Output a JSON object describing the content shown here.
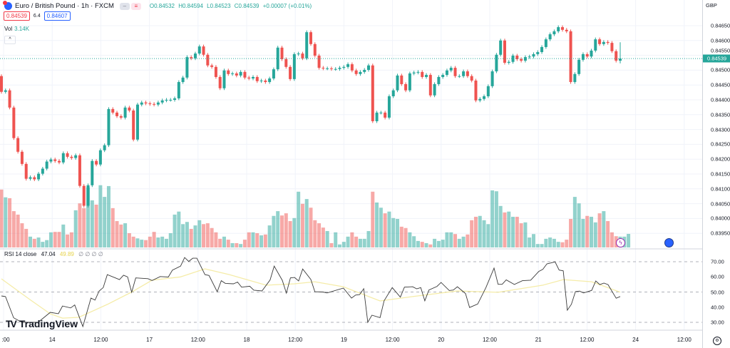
{
  "header": {
    "symbol_title": "Euro / British Pound · 1h · FXCM",
    "ohlc": {
      "open": "O0.84532",
      "high": "H0.84594",
      "low": "L0.84523",
      "close": "C0.84539",
      "change": "+0.00007 (+0.01%)"
    },
    "sell_price": "0.84539",
    "spread": "6.4",
    "buy_price": "0.84607",
    "volume_label": "Vol",
    "volume_value": "3.14K",
    "collapse_icon": "^"
  },
  "rsi_legend": {
    "label": "RSI 14 close",
    "rsi_value": "47.04",
    "ma_value": "49.89",
    "extra": "∅ ∅ ∅ ∅"
  },
  "axis": {
    "currency": "GBP",
    "current_price_label": "0.84539",
    "gear_icon": "⚙"
  },
  "branding": {
    "logo_mark": "TV",
    "logo_text": "TradingView"
  },
  "icons": {
    "bolt": "ϟ"
  },
  "colors": {
    "up": "#26a69a",
    "down": "#ef5350",
    "rsi_line": "#3a3a3a",
    "rsi_ma": "#f5eca8",
    "grid": "#f0f3fa"
  },
  "chart_data": {
    "type": "candlestick",
    "title": "Euro / British Pound · 1h · FXCM",
    "price_axis": {
      "ticks": [
        0.8465,
        0.846,
        0.8455,
        0.845,
        0.8445,
        0.844,
        0.8435,
        0.843,
        0.8425,
        0.842,
        0.8415,
        0.841,
        0.8405,
        0.84,
        0.8395
      ],
      "tick_labels": [
        "0.84650",
        "0.84600",
        "0.84550",
        "0.84500",
        "0.84450",
        "0.84400",
        "0.84350",
        "0.84300",
        "0.84250",
        "0.84200",
        "0.84150",
        "0.84100",
        "0.84050",
        "0.84000",
        "0.83950"
      ],
      "range": [
        0.8391,
        0.8466
      ]
    },
    "time_axis": {
      "tick_labels": [
        ":00",
        "14",
        "12:00",
        "17",
        "12:00",
        "18",
        "12:00",
        "19",
        "12:00",
        "20",
        "12:00",
        "21",
        "12:00",
        "24",
        "12:00"
      ]
    },
    "first_open": 0.8448,
    "closes": [
      0.84427,
      0.84432,
      0.84374,
      0.84271,
      0.84225,
      0.84184,
      0.84134,
      0.84139,
      0.84132,
      0.84151,
      0.84168,
      0.84192,
      0.84199,
      0.84194,
      0.84189,
      0.8422,
      0.84208,
      0.84204,
      0.84213,
      0.8411,
      0.84043,
      0.84112,
      0.84194,
      0.84182,
      0.8423,
      0.84247,
      0.84369,
      0.84357,
      0.84345,
      0.8434,
      0.84374,
      0.84364,
      0.84266,
      0.84384,
      0.84391,
      0.84388,
      0.84386,
      0.84384,
      0.84391,
      0.84398,
      0.844,
      0.844,
      0.84405,
      0.8446,
      0.84475,
      0.84544,
      0.8454,
      0.84556,
      0.8458,
      0.84552,
      0.84516,
      0.84511,
      0.84477,
      0.84439,
      0.84499,
      0.84487,
      0.84489,
      0.84482,
      0.84494,
      0.84475,
      0.84472,
      0.84477,
      0.84463,
      0.84465,
      0.8446,
      0.84472,
      0.84503,
      0.84576,
      0.84537,
      0.84511,
      0.8447,
      0.84554,
      0.84556,
      0.8454,
      0.84628,
      0.84588,
      0.84549,
      0.84508,
      0.84506,
      0.84506,
      0.84504,
      0.84504,
      0.84508,
      0.84511,
      0.8452,
      0.84499,
      0.84487,
      0.84494,
      0.84501,
      0.84516,
      0.84328,
      0.84357,
      0.84357,
      0.8434,
      0.84412,
      0.84432,
      0.84482,
      0.84453,
      0.84432,
      0.84489,
      0.84492,
      0.84494,
      0.84477,
      0.84484,
      0.84415,
      0.84453,
      0.84477,
      0.84484,
      0.84499,
      0.84508,
      0.8448,
      0.8448,
      0.84496,
      0.8448,
      0.84465,
      0.84398,
      0.84403,
      0.84412,
      0.84446,
      0.84496,
      0.84552,
      0.846,
      0.84525,
      0.84528,
      0.84549,
      0.84537,
      0.84532,
      0.84544,
      0.84546,
      0.84554,
      0.84561,
      0.84578,
      0.84604,
      0.84621,
      0.84631,
      0.84645,
      0.84636,
      0.84631,
      0.8446,
      0.84487,
      0.84535,
      0.84554,
      0.84546,
      0.84566,
      0.84604,
      0.84588,
      0.84595,
      0.84592,
      0.84564,
      0.84532,
      0.84539
    ],
    "last_bar": {
      "open": 0.84532,
      "high": 0.84594,
      "low": 0.84523,
      "close": 0.84539
    },
    "current_price": 0.84539,
    "volume_k": [
      13.4,
      11.6,
      11.4,
      8.4,
      7.6,
      5.6,
      4.3,
      2.5,
      2.0,
      2.3,
      1.3,
      1.7,
      3.5,
      3.6,
      3.6,
      5.3,
      3.0,
      3.5,
      8.6,
      10.2,
      9.1,
      13.9,
      10.9,
      9.9,
      14.4,
      11.7,
      14.2,
      9.1,
      6.1,
      5.3,
      5.6,
      3.3,
      2.5,
      2.1,
      1.8,
      1.7,
      2.5,
      3.6,
      2.3,
      2.5,
      2.0,
      3.3,
      7.6,
      8.3,
      5.4,
      5.9,
      4.3,
      5.1,
      6.3,
      5.4,
      5.6,
      4.5,
      3.5,
      2.0,
      2.5,
      1.8,
      1.0,
      1.0,
      0.8,
      1.8,
      3.5,
      3.5,
      3.3,
      2.8,
      3.0,
      5.1,
      7.3,
      8.4,
      7.4,
      7.9,
      6.1,
      6.8,
      12.9,
      10.1,
      11.2,
      9.2,
      6.3,
      5.6,
      4.6,
      3.8,
      1.0,
      3.5,
      0.7,
      1.3,
      2.5,
      3.5,
      2.5,
      2.0,
      2.0,
      3.8,
      12.9,
      10.4,
      9.2,
      7.9,
      8.3,
      6.8,
      6.6,
      4.8,
      4.5,
      3.5,
      2.6,
      1.5,
      1.3,
      1.0,
      0.7,
      2.0,
      1.5,
      1.8,
      3.5,
      3.5,
      3.1,
      2.0,
      2.5,
      3.0,
      6.3,
      7.1,
      7.3,
      6.3,
      5.4,
      13.2,
      13.0,
      9.6,
      8.1,
      8.3,
      7.1,
      7.1,
      5.6,
      5.8,
      2.3,
      3.1,
      0.8,
      0.8,
      2.0,
      2.3,
      2.0,
      1.3,
      1.2,
      1.8,
      6.6,
      11.7,
      10.2,
      6.6,
      7.3,
      7.1,
      5.8,
      7.9,
      8.4,
      6.1,
      3.5,
      2.6,
      2.5,
      2.5,
      3.14
    ],
    "rsi": {
      "period": 14,
      "levels": [
        70,
        50,
        30
      ],
      "axis_ticks": [
        70,
        60,
        50,
        40,
        30
      ],
      "axis_labels": [
        "70.00",
        "60.00",
        "50.00",
        "40.00",
        "30.00"
      ],
      "points": [
        [
          0,
          47.4
        ],
        [
          1,
          47
        ],
        [
          3,
          33
        ],
        [
          5,
          30
        ],
        [
          9,
          30
        ],
        [
          12,
          36.6
        ],
        [
          14,
          35.7
        ],
        [
          15,
          40.8
        ],
        [
          17,
          39.5
        ],
        [
          18,
          41.5
        ],
        [
          20,
          27.2
        ],
        [
          22,
          46
        ],
        [
          23,
          44.7
        ],
        [
          24,
          50.7
        ],
        [
          25,
          52.9
        ],
        [
          26,
          61.5
        ],
        [
          29,
          58.2
        ],
        [
          30,
          61.1
        ],
        [
          31,
          60
        ],
        [
          32,
          49.8
        ],
        [
          33,
          59.3
        ],
        [
          36,
          58.8
        ],
        [
          37,
          57.6
        ],
        [
          39,
          60.2
        ],
        [
          41,
          59.9
        ],
        [
          42,
          64.4
        ],
        [
          44,
          67.1
        ],
        [
          45,
          72.8
        ],
        [
          46,
          70.2
        ],
        [
          47,
          72.3
        ],
        [
          48,
          72.3
        ],
        [
          50,
          61.5
        ],
        [
          51,
          60.9
        ],
        [
          53,
          50.2
        ],
        [
          54,
          57.5
        ],
        [
          55,
          55.7
        ],
        [
          57,
          55.4
        ],
        [
          58,
          56.6
        ],
        [
          59,
          53.2
        ],
        [
          61,
          53.8
        ],
        [
          62,
          51.2
        ],
        [
          64,
          50.7
        ],
        [
          66,
          58
        ],
        [
          67,
          67.1
        ],
        [
          69,
          57.7
        ],
        [
          70,
          49.3
        ],
        [
          71,
          59.3
        ],
        [
          72,
          59.6
        ],
        [
          73,
          57.3
        ],
        [
          74,
          65.2
        ],
        [
          76,
          58.3
        ],
        [
          77,
          50.2
        ],
        [
          79,
          50
        ],
        [
          80,
          49.4
        ],
        [
          84,
          52.6
        ],
        [
          86,
          46
        ],
        [
          87,
          48
        ],
        [
          88,
          48.3
        ],
        [
          89,
          52.2
        ],
        [
          90,
          30
        ],
        [
          91,
          34.7
        ],
        [
          93,
          33.1
        ],
        [
          94,
          44.2
        ],
        [
          96,
          52.9
        ],
        [
          98,
          46.6
        ],
        [
          99,
          53.2
        ],
        [
          101,
          53.5
        ],
        [
          102,
          52.1
        ],
        [
          103,
          52.9
        ],
        [
          104,
          44.2
        ],
        [
          105,
          51.3
        ],
        [
          107,
          53.7
        ],
        [
          108,
          56.3
        ],
        [
          110,
          51
        ],
        [
          111,
          51.3
        ],
        [
          112,
          53.5
        ],
        [
          114,
          49
        ],
        [
          115,
          39.8
        ],
        [
          117,
          42.1
        ],
        [
          119,
          52.9
        ],
        [
          121,
          65.8
        ],
        [
          122,
          55.1
        ],
        [
          123,
          55.1
        ],
        [
          124,
          58
        ],
        [
          126,
          55
        ],
        [
          128,
          57.5
        ],
        [
          130,
          57.8
        ],
        [
          132,
          63.6
        ],
        [
          133,
          65
        ],
        [
          134,
          68.6
        ],
        [
          135,
          69.2
        ],
        [
          136,
          69.9
        ],
        [
          137,
          64.5
        ],
        [
          138,
          64
        ],
        [
          139,
          38
        ],
        [
          140,
          41.9
        ],
        [
          141,
          50.3
        ],
        [
          142,
          50.6
        ],
        [
          143,
          49.4
        ],
        [
          145,
          51.1
        ],
        [
          146,
          57.3
        ],
        [
          147,
          54.9
        ],
        [
          148,
          55.9
        ],
        [
          149,
          54.9
        ],
        [
          151,
          45.9
        ],
        [
          152,
          47.04
        ]
      ],
      "ma_points": [
        [
          0,
          58.7
        ],
        [
          7,
          45
        ],
        [
          12,
          35.6
        ],
        [
          15,
          32.8
        ],
        [
          19,
          33.3
        ],
        [
          26,
          41.8
        ],
        [
          32,
          50
        ],
        [
          37,
          57.8
        ],
        [
          44,
          60
        ],
        [
          50,
          65.3
        ],
        [
          56,
          61.5
        ],
        [
          65,
          54.5
        ],
        [
          72,
          55.4
        ],
        [
          77,
          56.8
        ],
        [
          84,
          53.5
        ],
        [
          93,
          44.1
        ],
        [
          101,
          47
        ],
        [
          112,
          50.7
        ],
        [
          122,
          49.8
        ],
        [
          133,
          54.5
        ],
        [
          138,
          58.2
        ],
        [
          145,
          56.8
        ],
        [
          152,
          49.89
        ]
      ]
    }
  }
}
